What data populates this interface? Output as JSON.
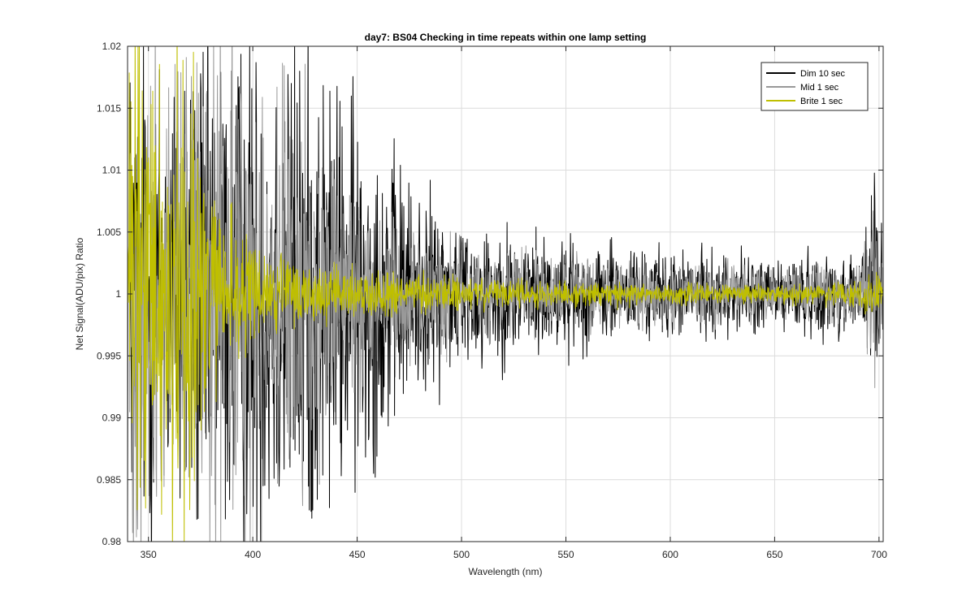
{
  "chart_data": {
    "type": "line",
    "title": "day7: BS04  Checking in time repeats within one lamp setting",
    "xlabel": "Wavelength (nm)",
    "ylabel": "Net Signal(ADU/pix) Ratio",
    "xlim": [
      340,
      702
    ],
    "ylim": [
      0.98,
      1.02
    ],
    "xticks": [
      350,
      400,
      450,
      500,
      550,
      600,
      650,
      700
    ],
    "yticks": [
      0.98,
      0.985,
      0.99,
      0.995,
      1,
      1.005,
      1.01,
      1.015,
      1.02
    ],
    "x_tick_labels": [
      "350",
      "400",
      "450",
      "500",
      "550",
      "600",
      "650",
      "700"
    ],
    "y_tick_labels": [
      "0.98",
      "0.985",
      "0.99",
      "0.995",
      "1",
      "1.005",
      "1.01",
      "1.015",
      "1.02"
    ],
    "grid": true,
    "legend_position": "top-right",
    "series": [
      {
        "name": "Dim 10 sec",
        "color": "#000000",
        "noise_envelope": {
          "x": [
            340,
            380,
            420,
            450,
            480,
            500,
            550,
            600,
            650,
            690,
            697,
            702
          ],
          "amplitude": [
            0.03,
            0.03,
            0.03,
            0.022,
            0.012,
            0.009,
            0.0065,
            0.005,
            0.0045,
            0.005,
            0.016,
            0.006
          ]
        }
      },
      {
        "name": "Mid 1 sec",
        "color": "#999999",
        "noise_envelope": {
          "x": [
            340,
            380,
            420,
            440,
            470,
            500,
            550,
            600,
            650,
            690,
            697,
            702
          ],
          "amplitude": [
            0.03,
            0.03,
            0.022,
            0.014,
            0.008,
            0.006,
            0.0045,
            0.0035,
            0.003,
            0.0035,
            0.01,
            0.004
          ]
        }
      },
      {
        "name": "Brite 1 sec",
        "color": "#BFBF00",
        "noise_envelope": {
          "x": [
            340,
            370,
            380,
            400,
            430,
            460,
            500,
            550,
            600,
            650,
            690,
            698,
            702
          ],
          "amplitude": [
            0.03,
            0.03,
            0.012,
            0.006,
            0.0035,
            0.0025,
            0.002,
            0.0015,
            0.0012,
            0.0011,
            0.0013,
            0.003,
            0.0015
          ]
        }
      }
    ]
  }
}
